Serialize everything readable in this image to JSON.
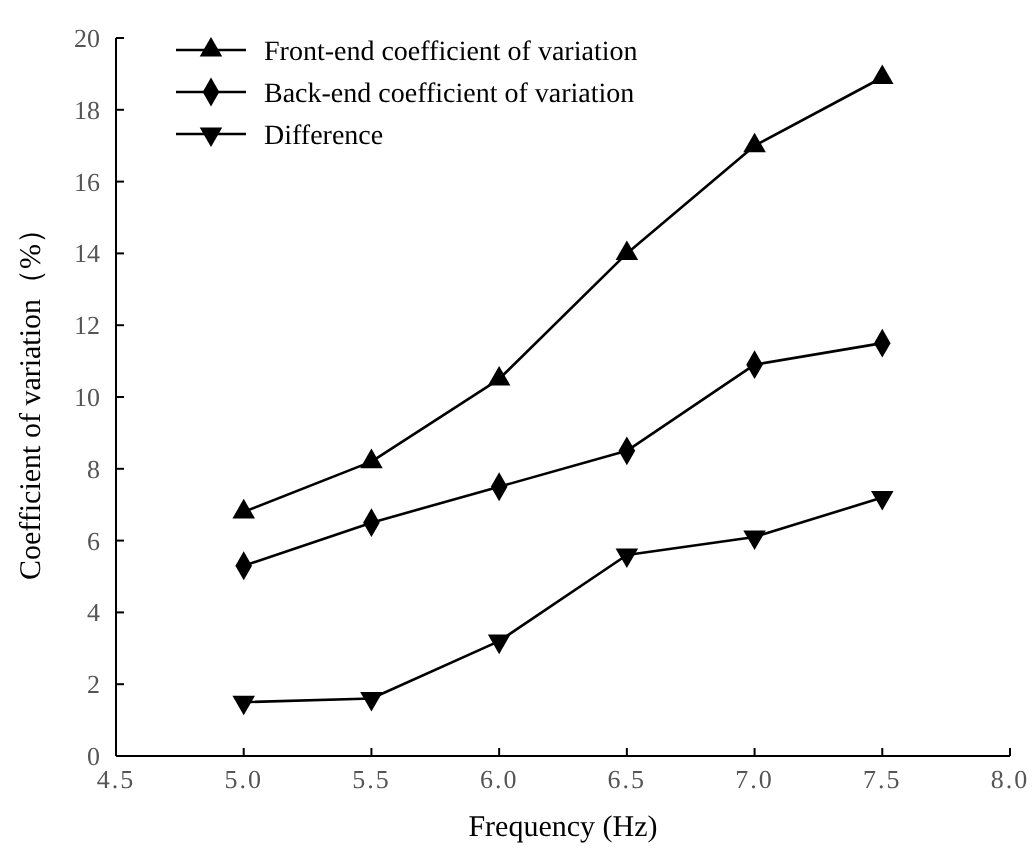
{
  "chart_data": {
    "type": "line",
    "xlabel": "Frequency (Hz)",
    "ylabel": "Coefficient of variation（%）",
    "x": [
      5.0,
      5.5,
      6.0,
      6.5,
      7.0,
      7.5
    ],
    "xlim": [
      4.5,
      8.0
    ],
    "xticks": [
      {
        "value": 4.5,
        "label": "4.5"
      },
      {
        "value": 5.0,
        "label": "5.0"
      },
      {
        "value": 5.5,
        "label": "5.5"
      },
      {
        "value": 6.0,
        "label": "6.0"
      },
      {
        "value": 6.5,
        "label": "6.5"
      },
      {
        "value": 7.0,
        "label": "7.0"
      },
      {
        "value": 7.5,
        "label": "7.5"
      },
      {
        "value": 8.0,
        "label": "8.0"
      }
    ],
    "ylim": [
      0,
      20
    ],
    "yticks": [
      0,
      2,
      4,
      6,
      8,
      10,
      12,
      14,
      16,
      18,
      20
    ],
    "grid": false,
    "legend": "top left",
    "line_style": "solid",
    "series": [
      {
        "name": "Front-end coefficient of variation",
        "color": "#000000",
        "marker": "triangle",
        "values": [
          6.8,
          8.2,
          10.5,
          14.0,
          17.0,
          18.9
        ]
      },
      {
        "name": "Back-end coefficient of variation",
        "color": "#000000",
        "marker": "diamond",
        "values": [
          5.3,
          6.5,
          7.5,
          8.5,
          10.9,
          11.5
        ]
      },
      {
        "name": "Difference",
        "color": "#000000",
        "marker": "triangle-down",
        "values": [
          1.5,
          1.6,
          3.2,
          5.6,
          6.1,
          7.2
        ]
      }
    ]
  }
}
